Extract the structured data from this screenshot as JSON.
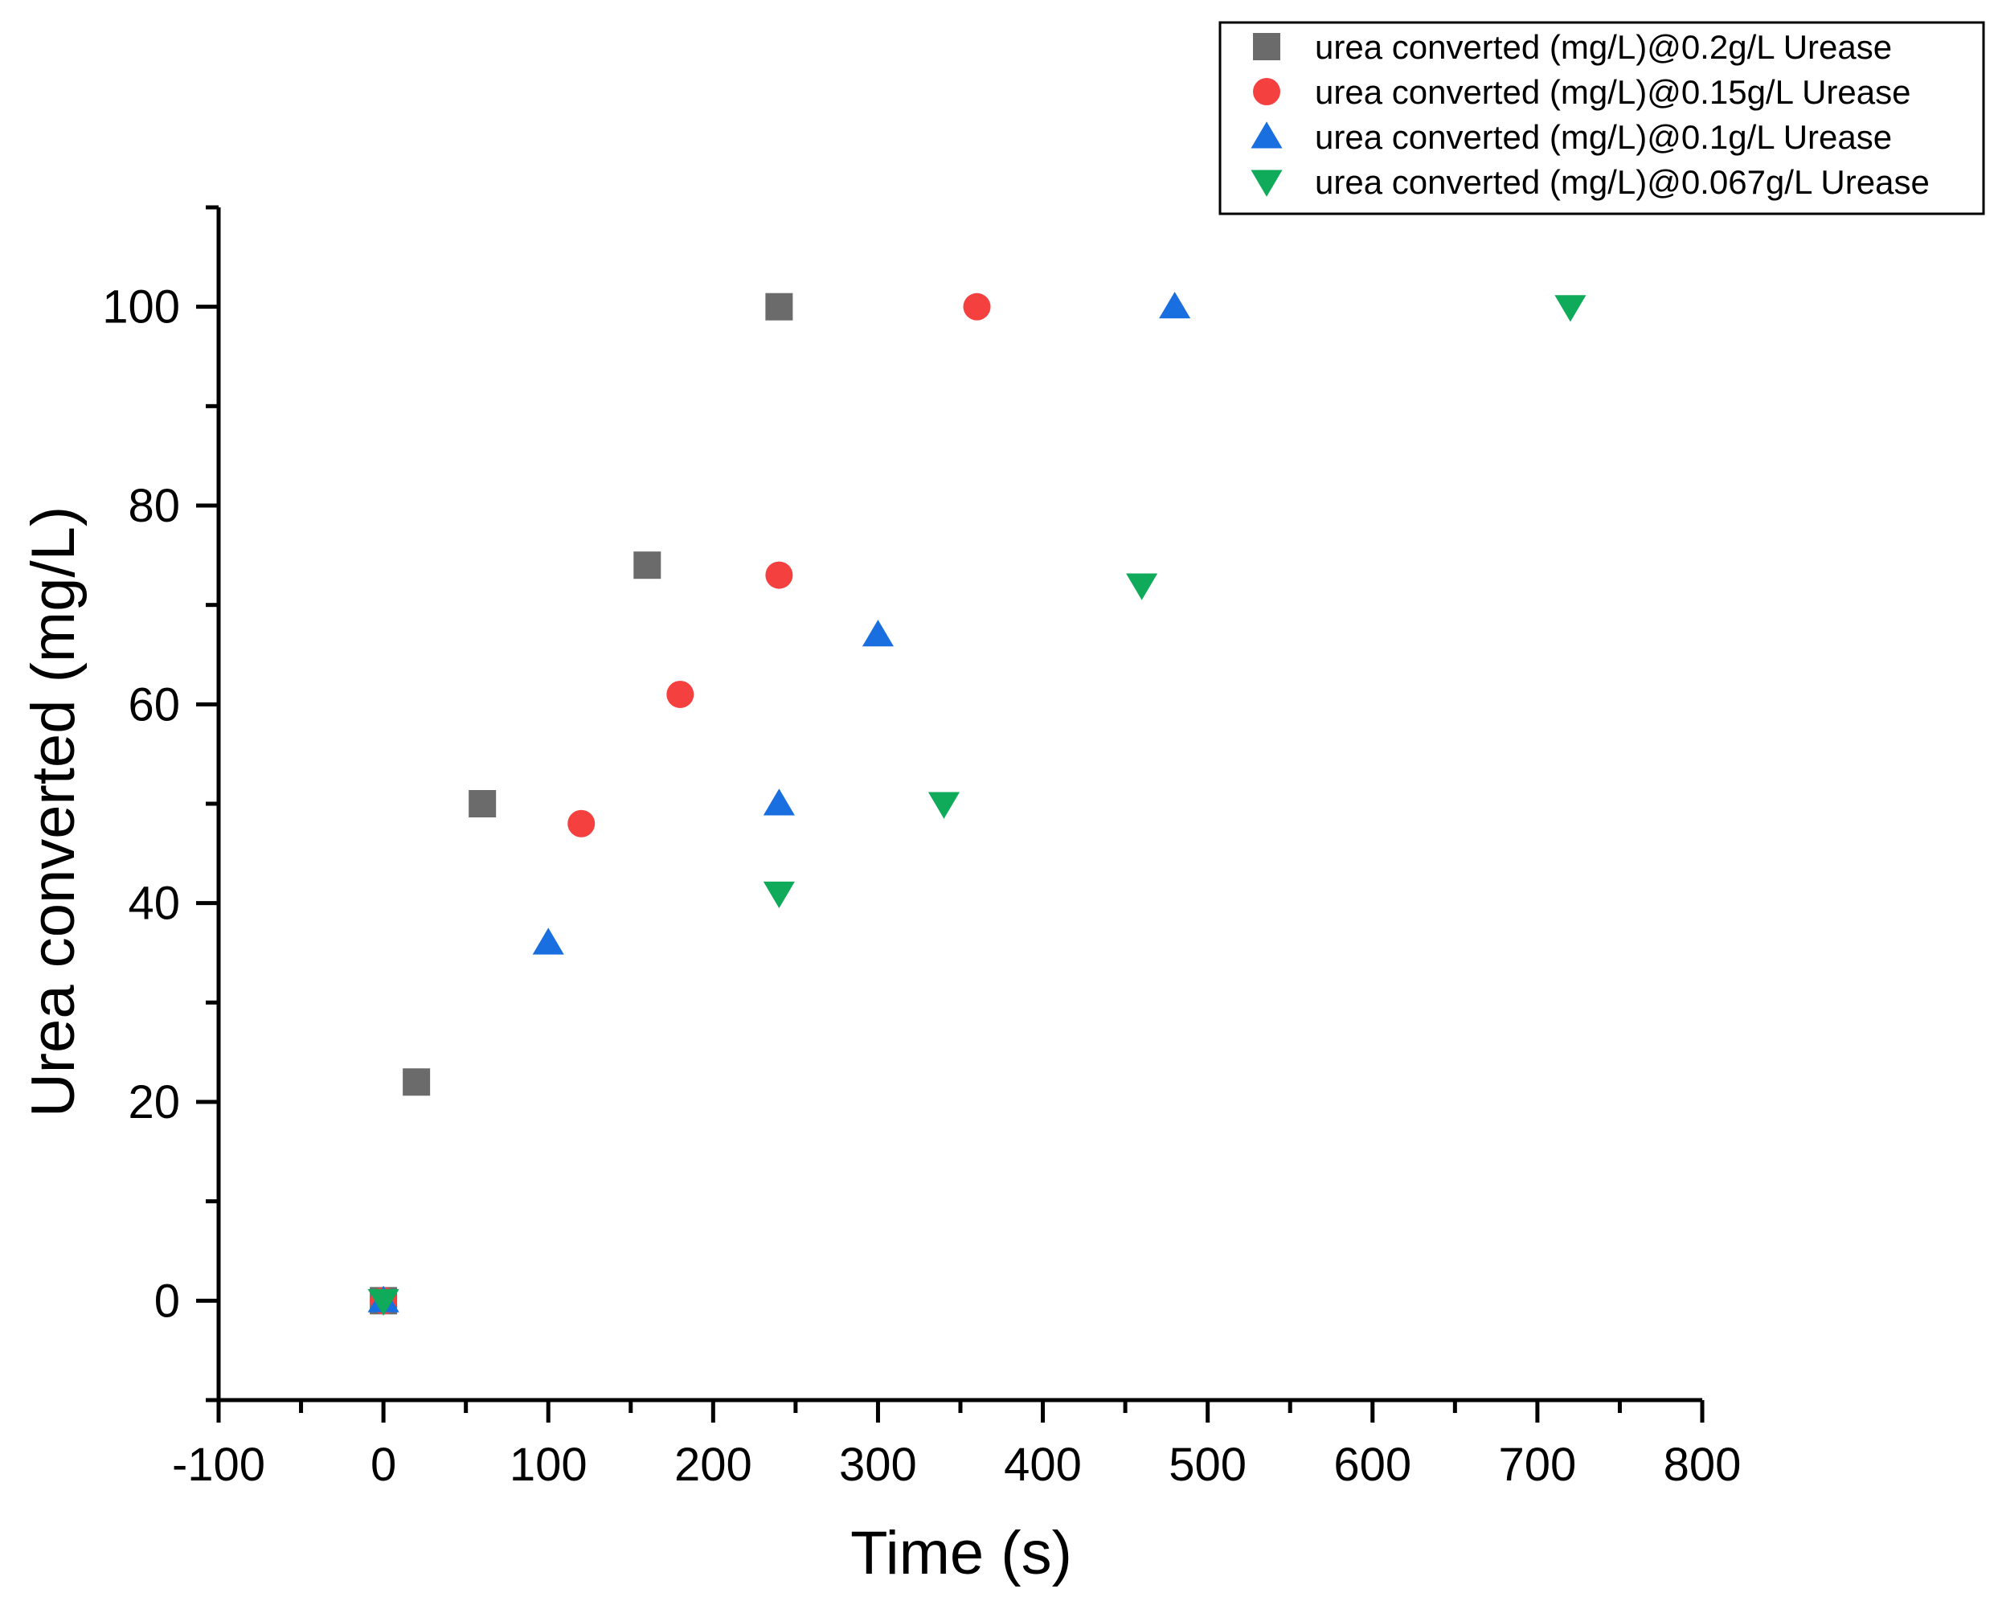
{
  "chart_data": {
    "type": "scatter",
    "xlabel": "Time (s)",
    "ylabel": "Urea converted (mg/L)",
    "xlim": [
      -100,
      800
    ],
    "ylim": [
      -10,
      110
    ],
    "x_ticks": [
      -100,
      0,
      100,
      200,
      300,
      400,
      500,
      600,
      700,
      800
    ],
    "y_ticks": [
      0,
      20,
      40,
      60,
      80,
      100
    ],
    "x_tick_labels": [
      "-100",
      "0",
      "100",
      "200",
      "300",
      "400",
      "500",
      "600",
      "700",
      "800"
    ],
    "y_tick_labels": [
      "0",
      "20",
      "40",
      "60",
      "80",
      "100"
    ],
    "grid": false,
    "legend_position": "top-right",
    "series": [
      {
        "name": "urea converted (mg/L)@0.2g/L Urease",
        "marker": "square",
        "color": "#6b6b6b",
        "x": [
          0,
          20,
          60,
          160,
          240
        ],
        "y": [
          0,
          22,
          50,
          74,
          100
        ]
      },
      {
        "name": "urea converted (mg/L)@0.15g/L Urease",
        "marker": "circle",
        "color": "#f54040",
        "x": [
          0,
          120,
          180,
          240,
          360
        ],
        "y": [
          0,
          48,
          61,
          73,
          100
        ]
      },
      {
        "name": "urea converted (mg/L)@0.1g/L Urease",
        "marker": "triangle-up",
        "color": "#1a6fe0",
        "x": [
          0,
          100,
          240,
          300,
          480
        ],
        "y": [
          0,
          36,
          50,
          67,
          100
        ]
      },
      {
        "name": "urea converted (mg/L)@0.067g/L Urease",
        "marker": "triangle-down",
        "color": "#0faa5a",
        "x": [
          0,
          240,
          340,
          460,
          720
        ],
        "y": [
          0,
          41,
          50,
          72,
          100
        ]
      }
    ]
  }
}
